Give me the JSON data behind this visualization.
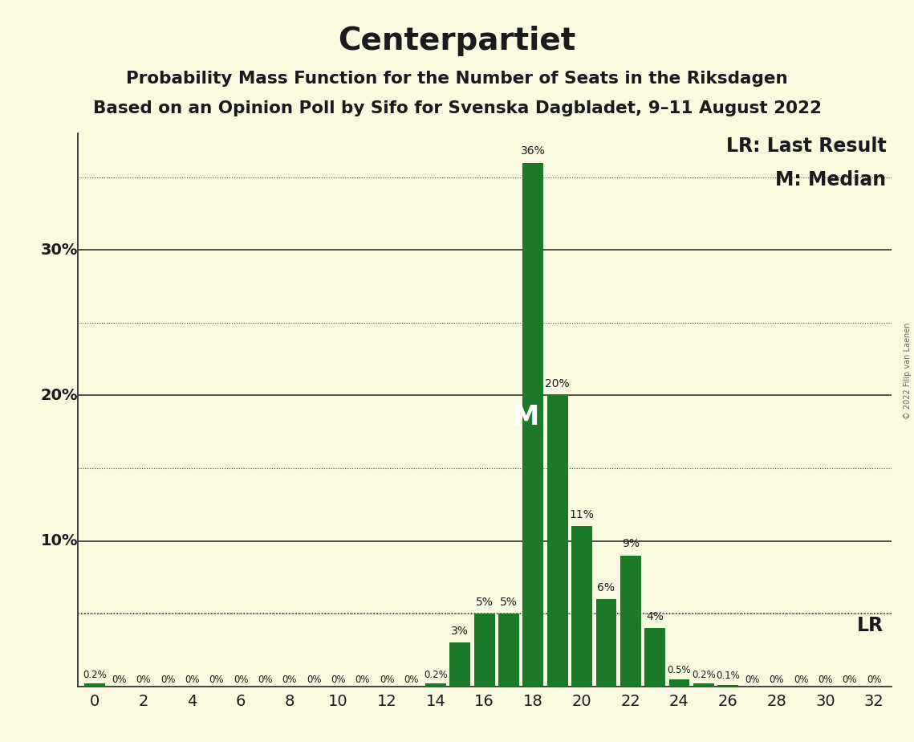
{
  "title": "Centerpartiet",
  "subtitle1": "Probability Mass Function for the Number of Seats in the Riksdagen",
  "subtitle2": "Based on an Opinion Poll by Sifo for Svenska Dagbladet, 9–11 August 2022",
  "copyright": "© 2022 Filip van Laenen",
  "background_color": "#FAFAE0",
  "bar_color": "#1A7A2A",
  "text_color": "#1A1A1A",
  "y_max": 38,
  "major_yticks": [
    10,
    20,
    30
  ],
  "minor_yticks": [
    5,
    15,
    25,
    35
  ],
  "seats": [
    0,
    1,
    2,
    3,
    4,
    5,
    6,
    7,
    8,
    9,
    10,
    11,
    12,
    13,
    14,
    15,
    16,
    17,
    18,
    19,
    20,
    21,
    22,
    23,
    24,
    25,
    26,
    27,
    28,
    29,
    30,
    31,
    32
  ],
  "probs": [
    0.2,
    0,
    0,
    0,
    0,
    0,
    0,
    0,
    0,
    0,
    0,
    0,
    0,
    0,
    0.2,
    3,
    5,
    5,
    36,
    20,
    11,
    6,
    9,
    4,
    0.5,
    0.2,
    0.1,
    0,
    0,
    0,
    0,
    0,
    0
  ],
  "bar_labels": [
    "0.2%",
    "0%",
    "0%",
    "0%",
    "0%",
    "0%",
    "0%",
    "0%",
    "0%",
    "0%",
    "0%",
    "0%",
    "0%",
    "0%",
    "0.2%",
    "3%",
    "5%",
    "5%",
    "36%",
    "20%",
    "11%",
    "6%",
    "9%",
    "4%",
    "0.5%",
    "0.2%",
    "0.1%",
    "0%",
    "0%",
    "0%",
    "0%",
    "0%",
    "0%"
  ],
  "lr_value": 5.0,
  "median_seat": 18,
  "lr_legend_label": "LR: Last Result",
  "median_legend_label": "M: Median",
  "median_bar_label": "M",
  "lr_label": "LR",
  "title_fontsize": 28,
  "subtitle_fontsize": 15.5,
  "tick_fontsize": 14,
  "legend_fontsize": 17,
  "lr_line_color": "#333333",
  "median_label_color": "#FFFFFF",
  "bar_width": 0.85
}
